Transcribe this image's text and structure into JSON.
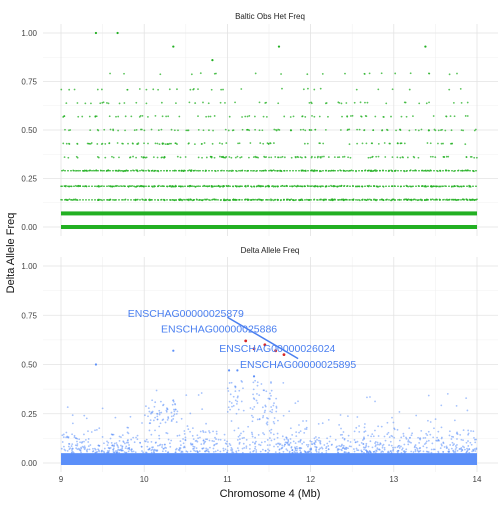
{
  "chart_data": [
    {
      "type": "scatter",
      "title": "Baltic Obs Het Freq",
      "xlabel": "Chromosome 4 (Mb)",
      "ylabel": "Delta Allele Freq",
      "xlim": [
        9,
        14
      ],
      "ylim": [
        0,
        1
      ],
      "x_ticks": [
        "9",
        "10",
        "11",
        "12",
        "13",
        "14"
      ],
      "y_ticks": [
        "0.00",
        "0.25",
        "0.50",
        "0.75",
        "1.00"
      ],
      "grid": true,
      "point_color": "#22b022",
      "series": [
        {
          "values_description_levels": [
            0.0,
            0.07,
            0.14,
            0.21,
            0.29,
            0.36,
            0.43,
            0.5,
            0.57,
            0.64,
            0.71,
            0.79
          ],
          "level_density": [
            1.0,
            1.0,
            0.9,
            0.75,
            0.55,
            0.4,
            0.3,
            0.3,
            0.22,
            0.15,
            0.1,
            0.07
          ]
        }
      ],
      "outliers": [
        {
          "x": 9.42,
          "y": 1.0
        },
        {
          "x": 9.68,
          "y": 1.0
        },
        {
          "x": 10.82,
          "y": 0.86
        },
        {
          "x": 10.35,
          "y": 0.93
        },
        {
          "x": 11.62,
          "y": 0.93
        },
        {
          "x": 13.38,
          "y": 0.93
        }
      ]
    },
    {
      "type": "scatter",
      "title": "Delta Allele Freq",
      "xlabel": "Chromosome 4 (Mb)",
      "ylabel": "Delta Allele Freq",
      "xlim": [
        9,
        14
      ],
      "ylim": [
        0,
        1
      ],
      "x_ticks": [
        "9",
        "10",
        "11",
        "12",
        "13",
        "14"
      ],
      "y_ticks": [
        "0.00",
        "0.25",
        "0.50",
        "0.75",
        "1.00"
      ],
      "grid": true,
      "point_color": "#5b8ff9",
      "highlight_color": "#d62728",
      "highlights": [
        {
          "x": 11.22,
          "y": 0.62
        },
        {
          "x": 11.45,
          "y": 0.6
        },
        {
          "x": 11.58,
          "y": 0.57
        },
        {
          "x": 11.68,
          "y": 0.55
        },
        {
          "x": 11.32,
          "y": 0.58
        }
      ],
      "trend_line": {
        "x": [
          11.0,
          11.85
        ],
        "y": [
          0.74,
          0.53
        ]
      },
      "annotations": [
        {
          "text": "ENSCHAG00000025879",
          "x": 10.5,
          "y": 0.76
        },
        {
          "text": "ENSCHAG00000025886",
          "x": 10.9,
          "y": 0.68
        },
        {
          "text": "ENSCHAG00000026024",
          "x": 11.6,
          "y": 0.58
        },
        {
          "text": "ENSCHAG00000025895",
          "x": 11.85,
          "y": 0.5
        }
      ],
      "notable_points": [
        {
          "x": 10.35,
          "y": 0.57
        },
        {
          "x": 11.32,
          "y": 0.44
        },
        {
          "x": 11.02,
          "y": 0.47
        },
        {
          "x": 11.12,
          "y": 0.47
        },
        {
          "x": 9.42,
          "y": 0.5
        }
      ]
    }
  ]
}
